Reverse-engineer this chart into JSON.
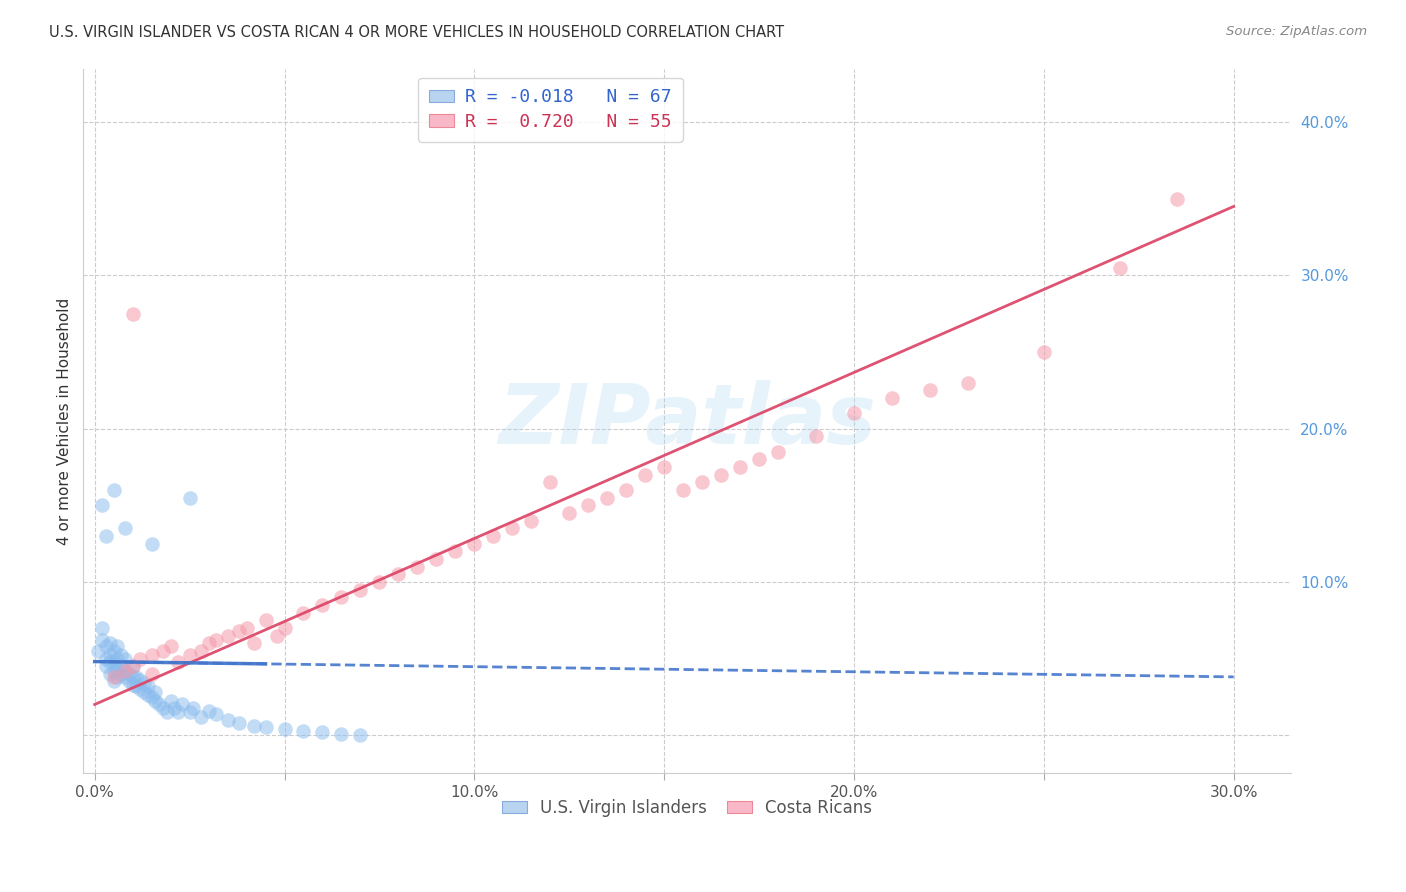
{
  "title": "U.S. VIRGIN ISLANDER VS COSTA RICAN 4 OR MORE VEHICLES IN HOUSEHOLD CORRELATION CHART",
  "source": "Source: ZipAtlas.com",
  "ylabel": "4 or more Vehicles in Household",
  "right_yticklabels": [
    "",
    "10.0%",
    "20.0%",
    "30.0%",
    "40.0%"
  ],
  "right_yticks": [
    0.0,
    0.1,
    0.2,
    0.3,
    0.4
  ],
  "xticks": [
    0.0,
    0.05,
    0.1,
    0.15,
    0.2,
    0.25,
    0.3
  ],
  "xticklabels": [
    "0.0%",
    "",
    "10.0%",
    "",
    "20.0%",
    "",
    "30.0%"
  ],
  "xlim": [
    -0.003,
    0.315
  ],
  "ylim": [
    -0.025,
    0.435
  ],
  "blue_color": "#88bbee",
  "pink_color": "#f599aa",
  "blue_line_color": "#4477cc",
  "pink_line_color": "#dd4466",
  "watermark": "ZIPatlas",
  "blue_R": -0.018,
  "blue_N": 67,
  "pink_R": 0.72,
  "pink_N": 55,
  "blue_alpha": 0.5,
  "pink_alpha": 0.55,
  "dot_size": 110,
  "blue_points_x": [
    0.001,
    0.002,
    0.002,
    0.003,
    0.003,
    0.003,
    0.004,
    0.004,
    0.004,
    0.004,
    0.005,
    0.005,
    0.005,
    0.005,
    0.006,
    0.006,
    0.006,
    0.006,
    0.007,
    0.007,
    0.007,
    0.008,
    0.008,
    0.008,
    0.009,
    0.009,
    0.01,
    0.01,
    0.01,
    0.011,
    0.011,
    0.012,
    0.012,
    0.013,
    0.013,
    0.014,
    0.014,
    0.015,
    0.016,
    0.016,
    0.017,
    0.018,
    0.019,
    0.02,
    0.021,
    0.022,
    0.023,
    0.025,
    0.026,
    0.028,
    0.03,
    0.032,
    0.035,
    0.038,
    0.042,
    0.045,
    0.05,
    0.055,
    0.06,
    0.065,
    0.07,
    0.002,
    0.003,
    0.005,
    0.008,
    0.015,
    0.025
  ],
  "blue_points_y": [
    0.055,
    0.062,
    0.07,
    0.045,
    0.05,
    0.058,
    0.04,
    0.048,
    0.052,
    0.06,
    0.035,
    0.042,
    0.048,
    0.055,
    0.038,
    0.043,
    0.05,
    0.058,
    0.04,
    0.045,
    0.052,
    0.038,
    0.042,
    0.05,
    0.035,
    0.04,
    0.033,
    0.038,
    0.045,
    0.032,
    0.038,
    0.03,
    0.036,
    0.028,
    0.034,
    0.026,
    0.032,
    0.025,
    0.022,
    0.028,
    0.02,
    0.018,
    0.015,
    0.022,
    0.018,
    0.015,
    0.02,
    0.015,
    0.018,
    0.012,
    0.016,
    0.014,
    0.01,
    0.008,
    0.006,
    0.005,
    0.004,
    0.003,
    0.002,
    0.001,
    0.0,
    0.15,
    0.13,
    0.16,
    0.135,
    0.125,
    0.155
  ],
  "pink_points_x": [
    0.005,
    0.008,
    0.01,
    0.012,
    0.015,
    0.018,
    0.02,
    0.022,
    0.025,
    0.028,
    0.03,
    0.032,
    0.035,
    0.038,
    0.04,
    0.042,
    0.045,
    0.048,
    0.05,
    0.055,
    0.06,
    0.065,
    0.07,
    0.075,
    0.08,
    0.085,
    0.09,
    0.095,
    0.1,
    0.105,
    0.11,
    0.115,
    0.12,
    0.125,
    0.13,
    0.135,
    0.14,
    0.145,
    0.15,
    0.155,
    0.16,
    0.165,
    0.17,
    0.175,
    0.18,
    0.19,
    0.2,
    0.21,
    0.22,
    0.23,
    0.25,
    0.27,
    0.285,
    0.01,
    0.015
  ],
  "pink_points_y": [
    0.038,
    0.042,
    0.045,
    0.05,
    0.052,
    0.055,
    0.058,
    0.048,
    0.052,
    0.055,
    0.06,
    0.062,
    0.065,
    0.068,
    0.07,
    0.06,
    0.075,
    0.065,
    0.07,
    0.08,
    0.085,
    0.09,
    0.095,
    0.1,
    0.105,
    0.11,
    0.115,
    0.12,
    0.125,
    0.13,
    0.135,
    0.14,
    0.165,
    0.145,
    0.15,
    0.155,
    0.16,
    0.17,
    0.175,
    0.16,
    0.165,
    0.17,
    0.175,
    0.18,
    0.185,
    0.195,
    0.21,
    0.22,
    0.225,
    0.23,
    0.25,
    0.305,
    0.35,
    0.275,
    0.04
  ],
  "blue_trend_x": [
    0.0,
    0.3
  ],
  "blue_trend_y": [
    0.048,
    0.038
  ],
  "pink_trend_x": [
    0.0,
    0.3
  ],
  "pink_trend_y": [
    0.02,
    0.345
  ]
}
